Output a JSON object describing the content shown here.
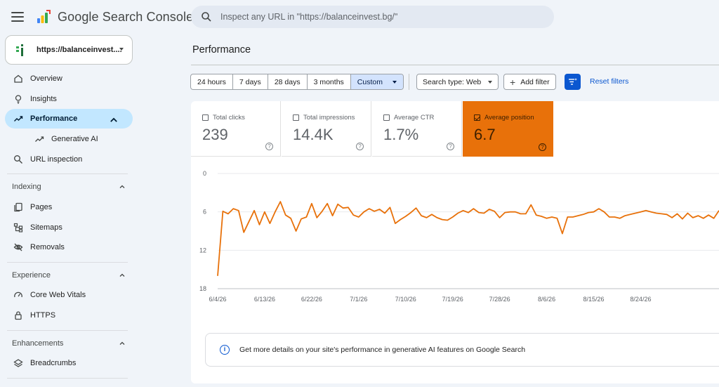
{
  "app": {
    "title": "Google Search Console"
  },
  "search": {
    "placeholder": "Inspect any URL in \"https://balanceinvest.bg/\""
  },
  "property": {
    "label": "https://balanceinvest...."
  },
  "sidebar": {
    "items": [
      {
        "label": "Overview",
        "icon": "home-icon"
      },
      {
        "label": "Insights",
        "icon": "lightbulb-icon"
      },
      {
        "label": "Performance",
        "icon": "trending-up-icon",
        "active": true
      },
      {
        "label": "Generative AI",
        "icon": "trending-up-icon"
      },
      {
        "label": "URL inspection",
        "icon": "search-icon"
      }
    ],
    "sections": [
      {
        "title": "Indexing",
        "items": [
          {
            "label": "Pages",
            "icon": "pages-icon"
          },
          {
            "label": "Sitemaps",
            "icon": "sitemap-icon"
          },
          {
            "label": "Removals",
            "icon": "eye-off-icon"
          }
        ]
      },
      {
        "title": "Experience",
        "items": [
          {
            "label": "Core Web Vitals",
            "icon": "speedometer-icon"
          },
          {
            "label": "HTTPS",
            "icon": "lock-icon"
          }
        ]
      },
      {
        "title": "Enhancements",
        "items": [
          {
            "label": "Breadcrumbs",
            "icon": "layers-icon"
          }
        ]
      }
    ]
  },
  "main": {
    "title": "Performance",
    "ranges": [
      "24 hours",
      "7 days",
      "28 days",
      "3 months",
      "Custom"
    ],
    "selected_range": "Custom",
    "search_type": "Search type: Web",
    "add_filter": "Add filter",
    "reset_filters": "Reset filters"
  },
  "metrics": [
    {
      "label": "Total clicks",
      "value": "239",
      "checked": false
    },
    {
      "label": "Total impressions",
      "value": "14.4K",
      "checked": false
    },
    {
      "label": "Average CTR",
      "value": "1.7%",
      "checked": false
    },
    {
      "label": "Average position",
      "value": "6.7",
      "checked": true
    }
  ],
  "banner": {
    "text": "Get more details on your site's performance in generative AI features on Google Search"
  },
  "colors": {
    "accent": "#0b57d0",
    "position_series": "#e8710a",
    "active_nav": "#c2e7ff"
  },
  "chart_data": {
    "type": "line",
    "ylim": [
      0,
      18
    ],
    "y_ticks": [
      "0",
      "6",
      "12",
      "18"
    ],
    "y_inverted": true,
    "x_ticks": [
      "6/4/26",
      "6/13/26",
      "6/22/26",
      "7/1/26",
      "7/10/26",
      "7/19/26",
      "7/28/26",
      "8/6/26",
      "8/15/26",
      "8/24/26"
    ],
    "series": [
      {
        "color": "#e8710a",
        "values": [
          16,
          5.9,
          6.3,
          5.5,
          5.8,
          9.2,
          7.5,
          5.8,
          8.0,
          6.0,
          7.8,
          6.0,
          4.4,
          6.5,
          7.0,
          9.0,
          7.1,
          6.8,
          4.7,
          6.9,
          5.9,
          4.7,
          6.6,
          4.8,
          5.4,
          5.3,
          6.5,
          6.8,
          6.0,
          5.5,
          5.9,
          5.6,
          6.2,
          5.3,
          7.8,
          7.2,
          6.7,
          6.1,
          5.4,
          6.6,
          6.9,
          6.4,
          6.9,
          7.2,
          7.3,
          6.8,
          6.2,
          5.8,
          6.1,
          5.5,
          6.1,
          6.2,
          5.6,
          5.9,
          6.9,
          6.1,
          6.0,
          6.0,
          6.3,
          6.3,
          4.9,
          6.5,
          6.7,
          7.0,
          6.8,
          7.0,
          9.4,
          6.8,
          6.8,
          6.6,
          6.4,
          6.1,
          6.0,
          5.5,
          6.0,
          6.8,
          6.8,
          7.0,
          6.6,
          6.4,
          6.2,
          6.0,
          5.8,
          6.0,
          6.2,
          6.3,
          6.4,
          6.9,
          6.3,
          7.1,
          6.2,
          6.9,
          6.6,
          7.0,
          6.5,
          7.0,
          5.8
        ]
      }
    ]
  }
}
